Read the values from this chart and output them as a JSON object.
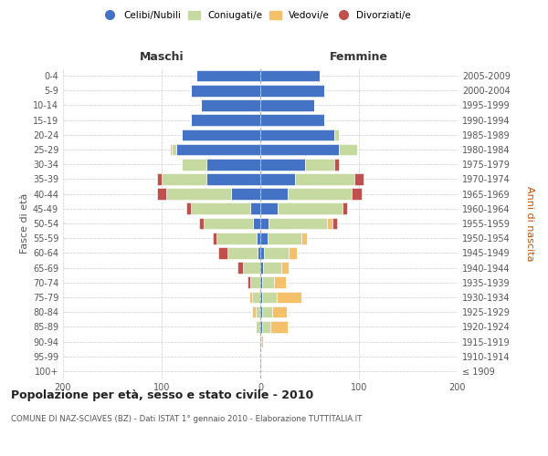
{
  "age_groups": [
    "100+",
    "95-99",
    "90-94",
    "85-89",
    "80-84",
    "75-79",
    "70-74",
    "65-69",
    "60-64",
    "55-59",
    "50-54",
    "45-49",
    "40-44",
    "35-39",
    "30-34",
    "25-29",
    "20-24",
    "15-19",
    "10-14",
    "5-9",
    "0-4"
  ],
  "birth_years": [
    "≤ 1909",
    "1910-1914",
    "1915-1919",
    "1920-1924",
    "1925-1929",
    "1930-1934",
    "1935-1939",
    "1940-1944",
    "1945-1949",
    "1950-1954",
    "1955-1959",
    "1960-1964",
    "1965-1969",
    "1970-1974",
    "1975-1979",
    "1980-1984",
    "1985-1989",
    "1990-1994",
    "1995-1999",
    "2000-2004",
    "2005-2009"
  ],
  "males": {
    "single": [
      0,
      0,
      0,
      0,
      0,
      0,
      0,
      0,
      3,
      4,
      7,
      10,
      30,
      55,
      55,
      85,
      80,
      70,
      60,
      70,
      65
    ],
    "married": [
      0,
      0,
      0,
      5,
      5,
      8,
      10,
      18,
      30,
      40,
      50,
      60,
      65,
      45,
      25,
      5,
      0,
      0,
      0,
      0,
      0
    ],
    "widowed": [
      0,
      0,
      0,
      0,
      3,
      3,
      0,
      0,
      0,
      0,
      0,
      0,
      0,
      0,
      0,
      2,
      0,
      0,
      0,
      0,
      0
    ],
    "divorced": [
      0,
      0,
      0,
      0,
      0,
      0,
      3,
      5,
      10,
      4,
      5,
      5,
      10,
      5,
      0,
      0,
      0,
      0,
      0,
      0,
      0
    ]
  },
  "females": {
    "single": [
      0,
      0,
      1,
      2,
      2,
      2,
      2,
      3,
      4,
      7,
      8,
      18,
      28,
      35,
      45,
      80,
      75,
      65,
      55,
      65,
      60
    ],
    "married": [
      0,
      0,
      0,
      8,
      10,
      15,
      12,
      18,
      25,
      35,
      60,
      65,
      65,
      60,
      30,
      18,
      5,
      0,
      0,
      0,
      0
    ],
    "widowed": [
      0,
      0,
      2,
      18,
      15,
      25,
      12,
      8,
      8,
      5,
      5,
      0,
      0,
      0,
      0,
      0,
      0,
      0,
      0,
      0,
      0
    ],
    "divorced": [
      0,
      0,
      0,
      0,
      0,
      0,
      0,
      0,
      0,
      0,
      5,
      5,
      10,
      10,
      5,
      0,
      0,
      0,
      0,
      0,
      0
    ]
  },
  "colors": {
    "single": "#4472C4",
    "married": "#C5D9A0",
    "widowed": "#F5C06A",
    "divorced": "#C0504D"
  },
  "legend_labels": [
    "Celibi/Nubili",
    "Coniugati/e",
    "Vedovi/e",
    "Divorziati/e"
  ],
  "maschi_label": "Maschi",
  "femmine_label": "Femmine",
  "ylabel_left": "Fasce di età",
  "ylabel_right": "Anni di nascita",
  "title": "Popolazione per età, sesso e stato civile - 2010",
  "subtitle": "COMUNE DI NAZ-SCIAVES (BZ) - Dati ISTAT 1° gennaio 2010 - Elaborazione TUTTITALIA.IT",
  "xlim": 200,
  "bg_color": "#ffffff",
  "grid_color": "#cccccc"
}
